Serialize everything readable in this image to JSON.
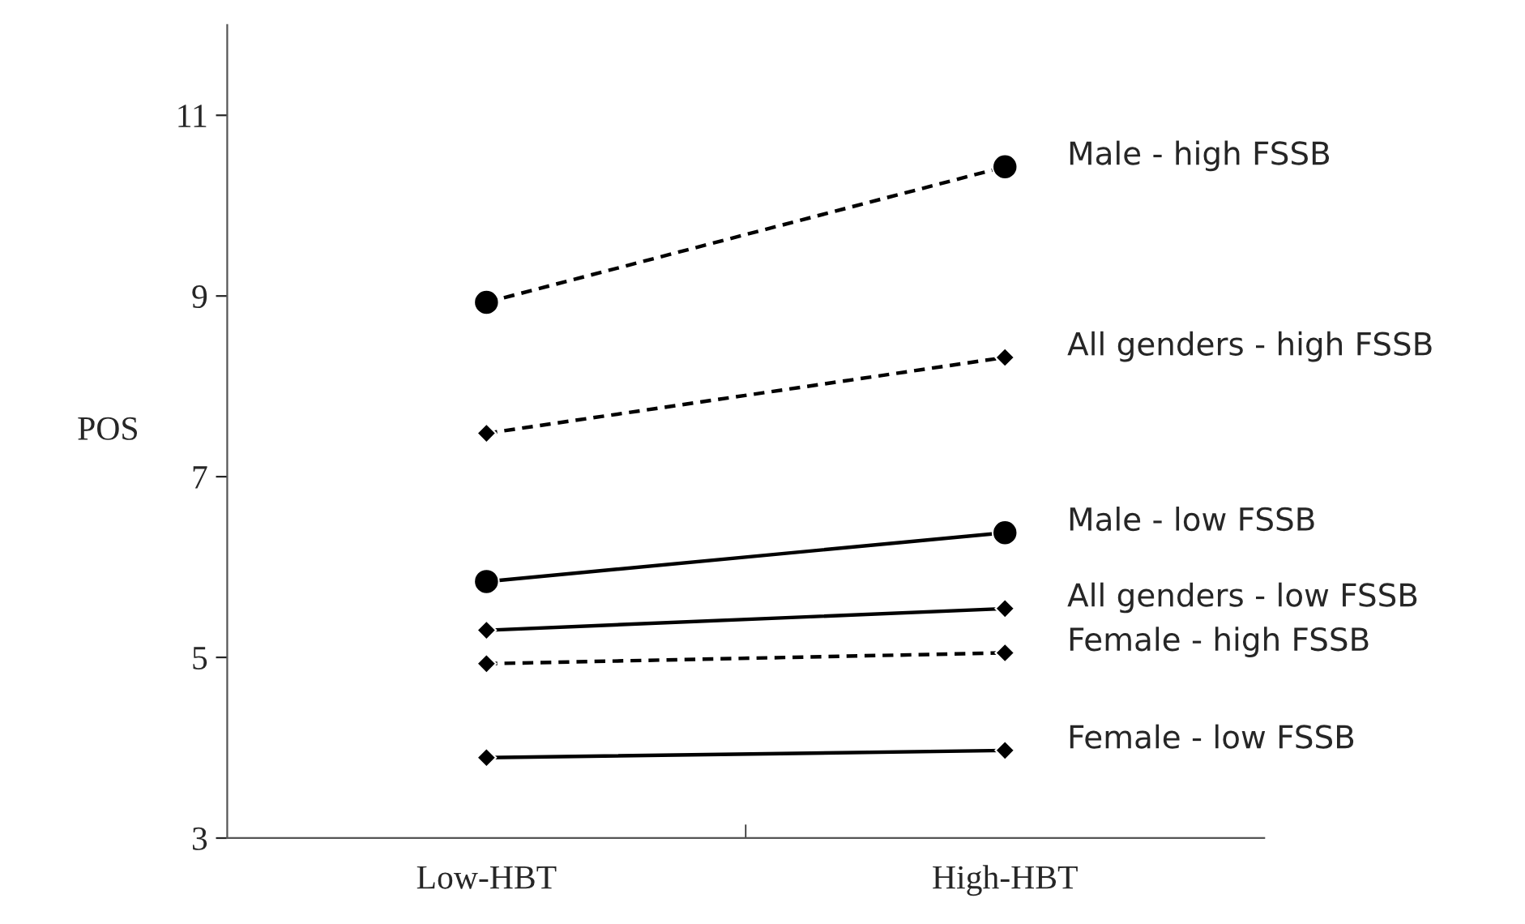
{
  "chart_data": {
    "type": "line",
    "ylabel": "POS",
    "categories": [
      "Low-HBT",
      "High-HBT"
    ],
    "series": [
      {
        "name": "Male - high FSSB",
        "color": "#000000",
        "values": [
          8.93,
          10.43
        ],
        "marker": "circle",
        "line_style": "dashed"
      },
      {
        "name": "All genders - high FSSB",
        "color": "#000000",
        "values": [
          7.48,
          8.32
        ],
        "marker": "diamond",
        "line_style": "dashed"
      },
      {
        "name": "Male - low FSSB",
        "color": "#000000",
        "values": [
          5.84,
          6.38
        ],
        "marker": "circle",
        "line_style": "solid"
      },
      {
        "name": "All genders - low FSSB",
        "color": "#000000",
        "values": [
          5.3,
          5.54
        ],
        "marker": "diamond",
        "line_style": "solid"
      },
      {
        "name": "Female - high FSSB",
        "color": "#000000",
        "values": [
          4.93,
          5.05
        ],
        "marker": "diamond",
        "line_style": "dashed"
      },
      {
        "name": "Female - low FSSB",
        "color": "#000000",
        "values": [
          3.89,
          3.97
        ],
        "marker": "diamond",
        "line_style": "solid"
      }
    ],
    "ylim": [
      3,
      12
    ],
    "yticks": [
      3,
      5,
      7,
      9,
      11
    ],
    "grid": false
  }
}
